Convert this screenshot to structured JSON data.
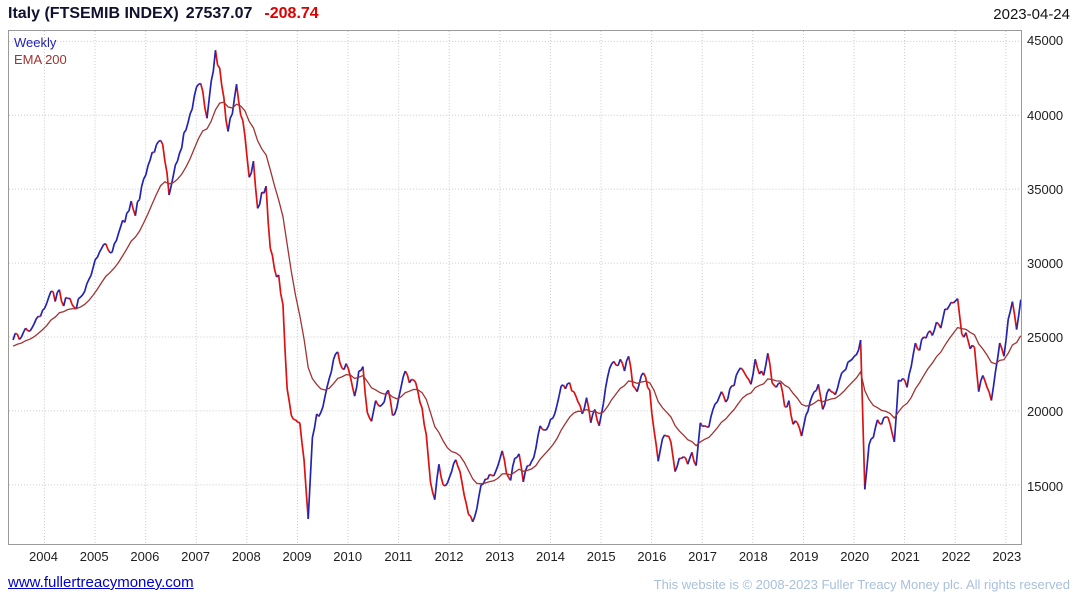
{
  "header": {
    "title": "Italy (FTSEMIB INDEX)",
    "price": "27537.07",
    "change": "-208.74",
    "date": "2023-04-24"
  },
  "legend": {
    "series1": "Weekly",
    "series2": "EMA 200"
  },
  "footer": {
    "link": "www.fullertreacymoney.com",
    "copyright": "This website is © 2008-2023 Fuller Treacy Money plc. All rights reserved"
  },
  "colors": {
    "up": "#2323b4",
    "down": "#dd1111",
    "ema": "#a03333",
    "grid": "#c9c9c9",
    "title": "#10102f",
    "change": "#dd0000",
    "date": "#141414",
    "link": "#0000cc",
    "copyright": "#a8c0dc",
    "axis_text": "#1e1e1e"
  },
  "chart_data": {
    "type": "line",
    "title": "Italy (FTSEMIB INDEX) weekly candles with 200 EMA",
    "x_ticks": [
      2004,
      2005,
      2006,
      2007,
      2008,
      2009,
      2010,
      2011,
      2012,
      2013,
      2014,
      2015,
      2016,
      2017,
      2018,
      2019,
      2020,
      2021,
      2022,
      2023
    ],
    "y_ticks": [
      15000,
      20000,
      25000,
      30000,
      35000,
      40000,
      45000
    ],
    "xlim": [
      2003.3,
      2023.3
    ],
    "ylim": [
      11000,
      45700
    ],
    "grid": true,
    "legend_position": "top-left",
    "x_start": 2003.38,
    "x_step": 0.0833333,
    "series": [
      {
        "name": "Weekly",
        "y": [
          24800,
          25200,
          25000,
          25600,
          25400,
          25900,
          26400,
          26800,
          27300,
          28100,
          27400,
          28200,
          27100,
          27600,
          27200,
          26900,
          27700,
          28100,
          28900,
          29700,
          30400,
          31000,
          31300,
          30700,
          31300,
          32000,
          32900,
          33400,
          34200,
          33200,
          34300,
          35700,
          36600,
          37500,
          38000,
          38300,
          36900,
          34600,
          35900,
          36900,
          37800,
          39000,
          40100,
          41300,
          42100,
          41600,
          39800,
          42300,
          44400,
          43200,
          41200,
          38900,
          40100,
          42100,
          40000,
          38600,
          35800,
          36900,
          33700,
          34800,
          35200,
          31000,
          29600,
          29200,
          27200,
          21500,
          19700,
          19400,
          19200,
          16700,
          12700,
          18200,
          19800,
          19900,
          21000,
          22200,
          23500,
          24000,
          22900,
          23200,
          22300,
          21000,
          22700,
          23000,
          19900,
          19300,
          20700,
          20300,
          20600,
          21400,
          19700,
          20200,
          21600,
          22700,
          21900,
          22100,
          21300,
          20200,
          18400,
          15200,
          14000,
          16400,
          15000,
          15100,
          15900,
          16700,
          15900,
          14300,
          13000,
          12500,
          13400,
          15000,
          15400,
          15700,
          15600,
          16300,
          17300,
          15800,
          15300,
          16800,
          17100,
          15200,
          16300,
          16600,
          17500,
          19000,
          18700,
          19000,
          19500,
          20400,
          21700,
          21500,
          21900,
          21300,
          20600,
          19800,
          20900,
          19200,
          20100,
          19000,
          20500,
          22300,
          23200,
          23100,
          23500,
          22700,
          23700,
          21700,
          21300,
          22400,
          22300,
          21400,
          18700,
          16600,
          18100,
          18300,
          17900,
          15900,
          16800,
          16900,
          16400,
          17200,
          16300,
          19200,
          19000,
          18900,
          20100,
          20600,
          21300,
          20600,
          21500,
          21700,
          22700,
          22800,
          22300,
          21800,
          23500,
          22500,
          22400,
          23900,
          21900,
          21600,
          21900,
          20300,
          20700,
          19100,
          19200,
          18300,
          19700,
          20600,
          21300,
          21800,
          20100,
          21200,
          21300,
          21100,
          22100,
          22700,
          23300,
          23500,
          23800,
          24800,
          14700,
          17700,
          18200,
          19400,
          19100,
          19600,
          19100,
          17900,
          22100,
          22200,
          21600,
          23000,
          24600,
          24100,
          25000,
          25300,
          25100,
          26000,
          25600,
          26900,
          27100,
          27300,
          27600,
          25200,
          25300,
          24200,
          24300,
          21300,
          22400,
          21600,
          20700,
          22700,
          24600,
          23700,
          26200,
          27400,
          25500,
          27537
        ]
      },
      {
        "name": "EMA 200",
        "derived_from": "Weekly",
        "alpha": 0.16,
        "initial": 24300
      }
    ],
    "latest": {
      "value": 27537.07,
      "change": -208.74,
      "date": "2023-04-24"
    }
  }
}
